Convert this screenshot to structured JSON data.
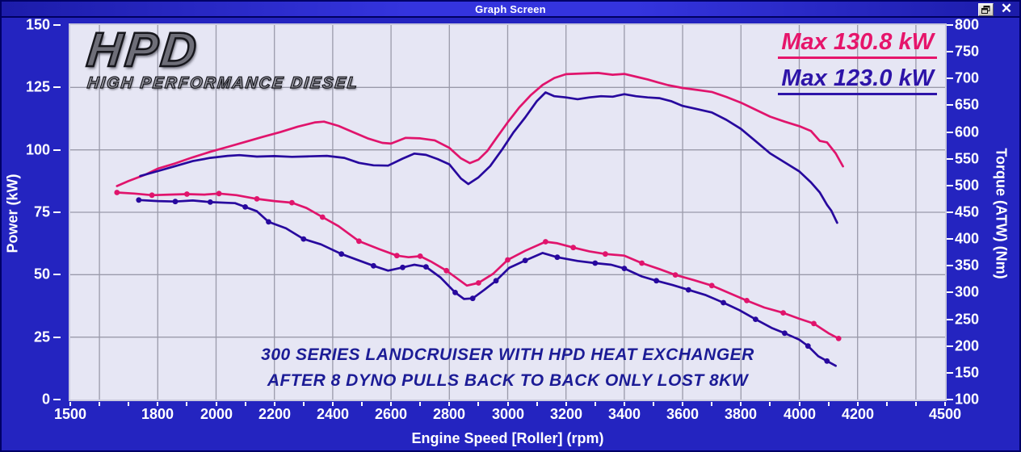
{
  "window": {
    "title": "Graph Screen"
  },
  "titlebar_icons": {
    "restore": "restore-window-icon",
    "close": "close-icon"
  },
  "logo": {
    "main": "HPD",
    "sub": "HIGH PERFORMANCE DIESEL"
  },
  "legend": [
    {
      "label": "Max 130.8 kW",
      "color": "#e6156b"
    },
    {
      "label": "Max 123.0 kW",
      "color": "#2d14a8"
    }
  ],
  "annotation": {
    "line1": "300 SERIES LANDCRUISER WITH HPD HEAT EXCHANGER",
    "line2": "AFTER 8 DYNO PULLS BACK TO BACK ONLY LOST 8KW"
  },
  "colors": {
    "window_blue": "#2424c0",
    "plot_background": "#e6e6f4",
    "gridline": "#9a9aaa",
    "run1_pink": "#e0146c",
    "run2_navy": "#27089e",
    "axis_text": "#ffffff",
    "annotation_navy": "#1c1c96"
  },
  "chart_data": {
    "type": "line",
    "title": "",
    "x_axis": {
      "label": "Engine Speed [Roller] (rpm)",
      "min": 1500,
      "max": 4500,
      "tick_labels": [
        1500,
        1800,
        2000,
        2200,
        2400,
        2600,
        2800,
        3000,
        3200,
        3400,
        3600,
        3800,
        4000,
        4200,
        4500
      ],
      "minor_tick_step": 100,
      "gridline_step": 200,
      "gridline_start": 1600,
      "gridline_end": 4400
    },
    "y_left": {
      "label": "Power (kW)",
      "min": 0,
      "max": 150,
      "ticks": [
        0,
        25,
        50,
        75,
        100,
        125,
        150
      ],
      "gridlines": [
        25,
        50,
        75,
        100,
        125
      ]
    },
    "y_right": {
      "label": "Torque (ATW) (Nm)",
      "min": 100,
      "max": 800,
      "ticks": [
        100,
        150,
        200,
        250,
        300,
        350,
        400,
        450,
        500,
        550,
        600,
        650,
        700,
        750,
        800
      ]
    },
    "grid": true,
    "legend_position": "top-right",
    "series": [
      {
        "name": "run1-power",
        "axis": "left",
        "units": "kW",
        "color": "#e0146c",
        "markers": false,
        "max": 130.8,
        "points": [
          [
            1660,
            85.5
          ],
          [
            1700,
            87.5
          ],
          [
            1760,
            90.2
          ],
          [
            1800,
            92.5
          ],
          [
            1860,
            94.6
          ],
          [
            1920,
            97.0
          ],
          [
            1980,
            99.2
          ],
          [
            2040,
            101.2
          ],
          [
            2100,
            103.2
          ],
          [
            2160,
            105.2
          ],
          [
            2220,
            107.1
          ],
          [
            2280,
            109.3
          ],
          [
            2340,
            111.0
          ],
          [
            2370,
            111.3
          ],
          [
            2420,
            109.6
          ],
          [
            2470,
            107.1
          ],
          [
            2520,
            104.6
          ],
          [
            2570,
            102.8
          ],
          [
            2600,
            102.5
          ],
          [
            2650,
            104.8
          ],
          [
            2700,
            104.6
          ],
          [
            2750,
            103.8
          ],
          [
            2800,
            100.8
          ],
          [
            2840,
            96.6
          ],
          [
            2870,
            94.7
          ],
          [
            2900,
            96.1
          ],
          [
            2930,
            99.5
          ],
          [
            2960,
            104.5
          ],
          [
            3000,
            111.0
          ],
          [
            3040,
            117.0
          ],
          [
            3080,
            122.0
          ],
          [
            3120,
            126.0
          ],
          [
            3160,
            128.8
          ],
          [
            3200,
            130.3
          ],
          [
            3260,
            130.6
          ],
          [
            3310,
            130.8
          ],
          [
            3360,
            130.1
          ],
          [
            3400,
            130.4
          ],
          [
            3440,
            129.3
          ],
          [
            3480,
            128.2
          ],
          [
            3515,
            127.0
          ],
          [
            3550,
            125.9
          ],
          [
            3600,
            124.8
          ],
          [
            3650,
            124.0
          ],
          [
            3700,
            123.2
          ],
          [
            3750,
            121.2
          ],
          [
            3800,
            118.9
          ],
          [
            3850,
            116.1
          ],
          [
            3900,
            113.3
          ],
          [
            3950,
            111.3
          ],
          [
            4000,
            109.5
          ],
          [
            4040,
            107.6
          ],
          [
            4070,
            103.6
          ],
          [
            4095,
            103.0
          ],
          [
            4125,
            98.6
          ],
          [
            4150,
            93.4
          ]
        ]
      },
      {
        "name": "run2-power",
        "axis": "left",
        "units": "kW",
        "color": "#27089e",
        "markers": false,
        "max": 123.0,
        "points": [
          [
            1740,
            89.5
          ],
          [
            1800,
            91.5
          ],
          [
            1860,
            93.5
          ],
          [
            1920,
            95.5
          ],
          [
            1980,
            96.8
          ],
          [
            2040,
            97.6
          ],
          [
            2080,
            97.9
          ],
          [
            2140,
            97.3
          ],
          [
            2200,
            97.5
          ],
          [
            2260,
            97.2
          ],
          [
            2320,
            97.4
          ],
          [
            2380,
            97.6
          ],
          [
            2440,
            96.8
          ],
          [
            2490,
            94.8
          ],
          [
            2540,
            93.8
          ],
          [
            2590,
            93.7
          ],
          [
            2640,
            96.5
          ],
          [
            2680,
            98.5
          ],
          [
            2720,
            98.0
          ],
          [
            2760,
            96.3
          ],
          [
            2800,
            94.2
          ],
          [
            2840,
            88.5
          ],
          [
            2865,
            86.3
          ],
          [
            2900,
            89.0
          ],
          [
            2940,
            93.5
          ],
          [
            2980,
            100.0
          ],
          [
            3020,
            107.0
          ],
          [
            3060,
            113.0
          ],
          [
            3100,
            119.5
          ],
          [
            3130,
            123.0
          ],
          [
            3160,
            121.5
          ],
          [
            3200,
            121.0
          ],
          [
            3240,
            120.3
          ],
          [
            3280,
            121.0
          ],
          [
            3320,
            121.5
          ],
          [
            3360,
            121.3
          ],
          [
            3400,
            122.3
          ],
          [
            3440,
            121.5
          ],
          [
            3480,
            121.0
          ],
          [
            3520,
            120.7
          ],
          [
            3560,
            119.5
          ],
          [
            3600,
            117.6
          ],
          [
            3650,
            116.3
          ],
          [
            3700,
            115.0
          ],
          [
            3750,
            112.0
          ],
          [
            3800,
            108.4
          ],
          [
            3850,
            103.5
          ],
          [
            3900,
            98.6
          ],
          [
            3950,
            95.0
          ],
          [
            4000,
            91.4
          ],
          [
            4040,
            87.0
          ],
          [
            4070,
            83.0
          ],
          [
            4095,
            78.0
          ],
          [
            4110,
            75.6
          ],
          [
            4130,
            70.8
          ]
        ]
      },
      {
        "name": "run1-torque",
        "axis": "right",
        "units": "Nm",
        "color": "#e0146c",
        "markers": true,
        "points": [
          [
            1660,
            487
          ],
          [
            1720,
            485
          ],
          [
            1780,
            482
          ],
          [
            1840,
            483
          ],
          [
            1900,
            484
          ],
          [
            1960,
            483
          ],
          [
            2010,
            485
          ],
          [
            2070,
            482
          ],
          [
            2140,
            475
          ],
          [
            2200,
            471
          ],
          [
            2260,
            468
          ],
          [
            2310,
            458
          ],
          [
            2365,
            441
          ],
          [
            2420,
            424
          ],
          [
            2490,
            396
          ],
          [
            2560,
            381
          ],
          [
            2620,
            369
          ],
          [
            2660,
            366
          ],
          [
            2700,
            368
          ],
          [
            2740,
            357
          ],
          [
            2790,
            341
          ],
          [
            2860,
            313
          ],
          [
            2900,
            318
          ],
          [
            2950,
            335
          ],
          [
            3000,
            361
          ],
          [
            3060,
            378
          ],
          [
            3130,
            395
          ],
          [
            3170,
            392
          ],
          [
            3225,
            384
          ],
          [
            3280,
            377
          ],
          [
            3335,
            372
          ],
          [
            3400,
            369
          ],
          [
            3460,
            355
          ],
          [
            3520,
            344
          ],
          [
            3575,
            333
          ],
          [
            3640,
            323
          ],
          [
            3700,
            313
          ],
          [
            3760,
            299
          ],
          [
            3820,
            285
          ],
          [
            3880,
            272
          ],
          [
            3945,
            262
          ],
          [
            4000,
            251
          ],
          [
            4050,
            242
          ],
          [
            4100,
            224
          ],
          [
            4135,
            214
          ]
        ]
      },
      {
        "name": "run2-torque",
        "axis": "right",
        "units": "Nm",
        "color": "#27089e",
        "markers": true,
        "points": [
          [
            1735,
            473
          ],
          [
            1800,
            471
          ],
          [
            1860,
            470
          ],
          [
            1920,
            472
          ],
          [
            1980,
            469
          ],
          [
            2065,
            467
          ],
          [
            2100,
            460
          ],
          [
            2140,
            452
          ],
          [
            2180,
            432
          ],
          [
            2240,
            420
          ],
          [
            2300,
            400
          ],
          [
            2360,
            390
          ],
          [
            2430,
            372
          ],
          [
            2490,
            360
          ],
          [
            2540,
            350
          ],
          [
            2590,
            341
          ],
          [
            2640,
            347
          ],
          [
            2680,
            352
          ],
          [
            2720,
            348
          ],
          [
            2770,
            328
          ],
          [
            2820,
            300
          ],
          [
            2850,
            288
          ],
          [
            2880,
            289
          ],
          [
            2920,
            305
          ],
          [
            2960,
            322
          ],
          [
            3005,
            346
          ],
          [
            3060,
            360
          ],
          [
            3120,
            374
          ],
          [
            3170,
            366
          ],
          [
            3240,
            359
          ],
          [
            3300,
            355
          ],
          [
            3355,
            352
          ],
          [
            3400,
            345
          ],
          [
            3460,
            330
          ],
          [
            3510,
            322
          ],
          [
            3565,
            314
          ],
          [
            3620,
            305
          ],
          [
            3680,
            295
          ],
          [
            3740,
            281
          ],
          [
            3795,
            267
          ],
          [
            3850,
            250
          ],
          [
            3905,
            234
          ],
          [
            3950,
            224
          ],
          [
            4000,
            212
          ],
          [
            4030,
            200
          ],
          [
            4065,
            181
          ],
          [
            4095,
            172
          ],
          [
            4125,
            163
          ]
        ]
      }
    ]
  }
}
